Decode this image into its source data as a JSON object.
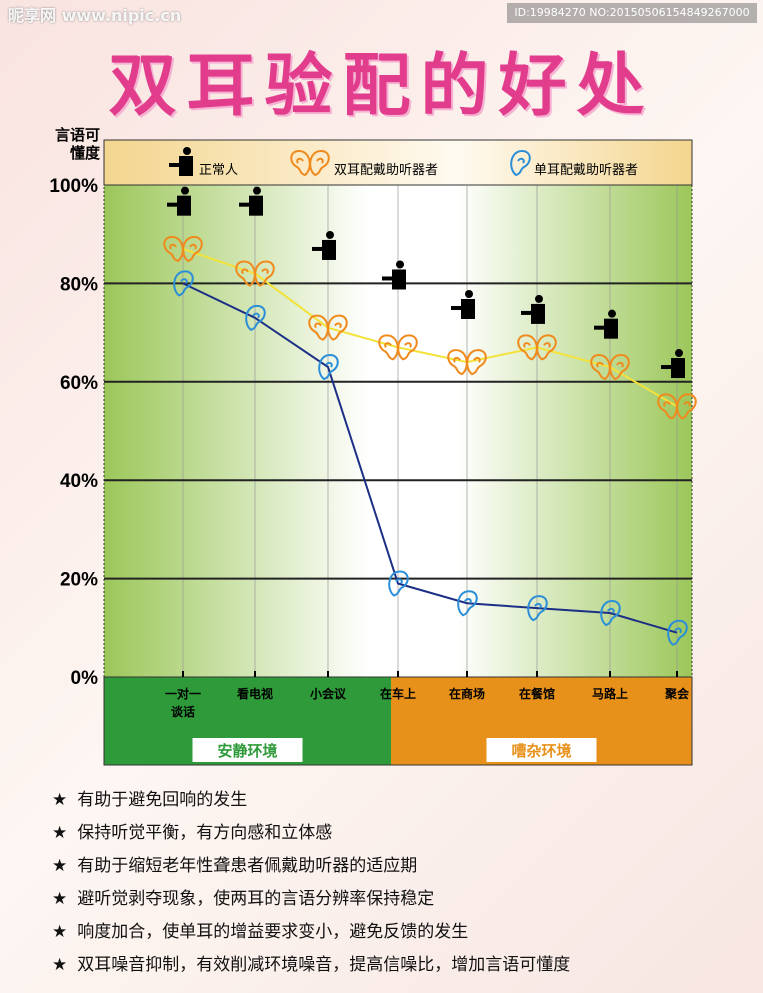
{
  "title": "双耳验配的好处",
  "watermark": {
    "site": "昵享网 www.nipic.cn",
    "id": "ID:19984270 NO:20150506154849267000"
  },
  "bullets": [
    "有助于避免回响的发生",
    "保持听觉平衡，有方向感和立体感",
    "有助于缩短老年性聋患者佩戴助听器的适应期",
    "避听觉剥夺现象，使两耳的言语分辨率保持稳定",
    "响度加合，使单耳的增益要求变小，避免反馈的发生",
    "双耳噪音抑制，有效削减环境噪音，提高信噪比，增加言语可懂度"
  ],
  "bullet_icon": "star",
  "chart_data": {
    "type": "line",
    "ylabel": "言语可懂度",
    "ylim": [
      0,
      100
    ],
    "yticks": [
      "100%",
      "80%",
      "60%",
      "40%",
      "20%",
      "0%"
    ],
    "ytick_values": [
      100,
      80,
      60,
      40,
      20,
      0
    ],
    "categories": [
      "一对一谈话",
      "看电视",
      "小会议",
      "在车上",
      "在商场",
      "在餐馆",
      "马路上",
      "聚会"
    ],
    "groups": [
      {
        "label": "安静环境",
        "range": [
          0,
          2
        ],
        "color": "#2f9a3a"
      },
      {
        "label": "嘈杂环境",
        "range": [
          3,
          7
        ],
        "color": "#e8911a"
      }
    ],
    "legend_position": "top",
    "series": [
      {
        "name": "正常人",
        "marker": "person",
        "color": "#000000",
        "values": [
          96,
          96,
          87,
          81,
          75,
          74,
          71,
          63
        ]
      },
      {
        "name": "双耳配戴助听器者",
        "marker": "two-ears",
        "color": "#f08a1c",
        "line": "#f3e23a",
        "values": [
          87,
          82,
          71,
          67,
          64,
          67,
          63,
          55
        ]
      },
      {
        "name": "单耳配戴助听器者",
        "marker": "ear",
        "color": "#2a8fd8",
        "line": "#1c2f86",
        "values": [
          80,
          73,
          63,
          19,
          15,
          14,
          13,
          9
        ]
      }
    ]
  }
}
